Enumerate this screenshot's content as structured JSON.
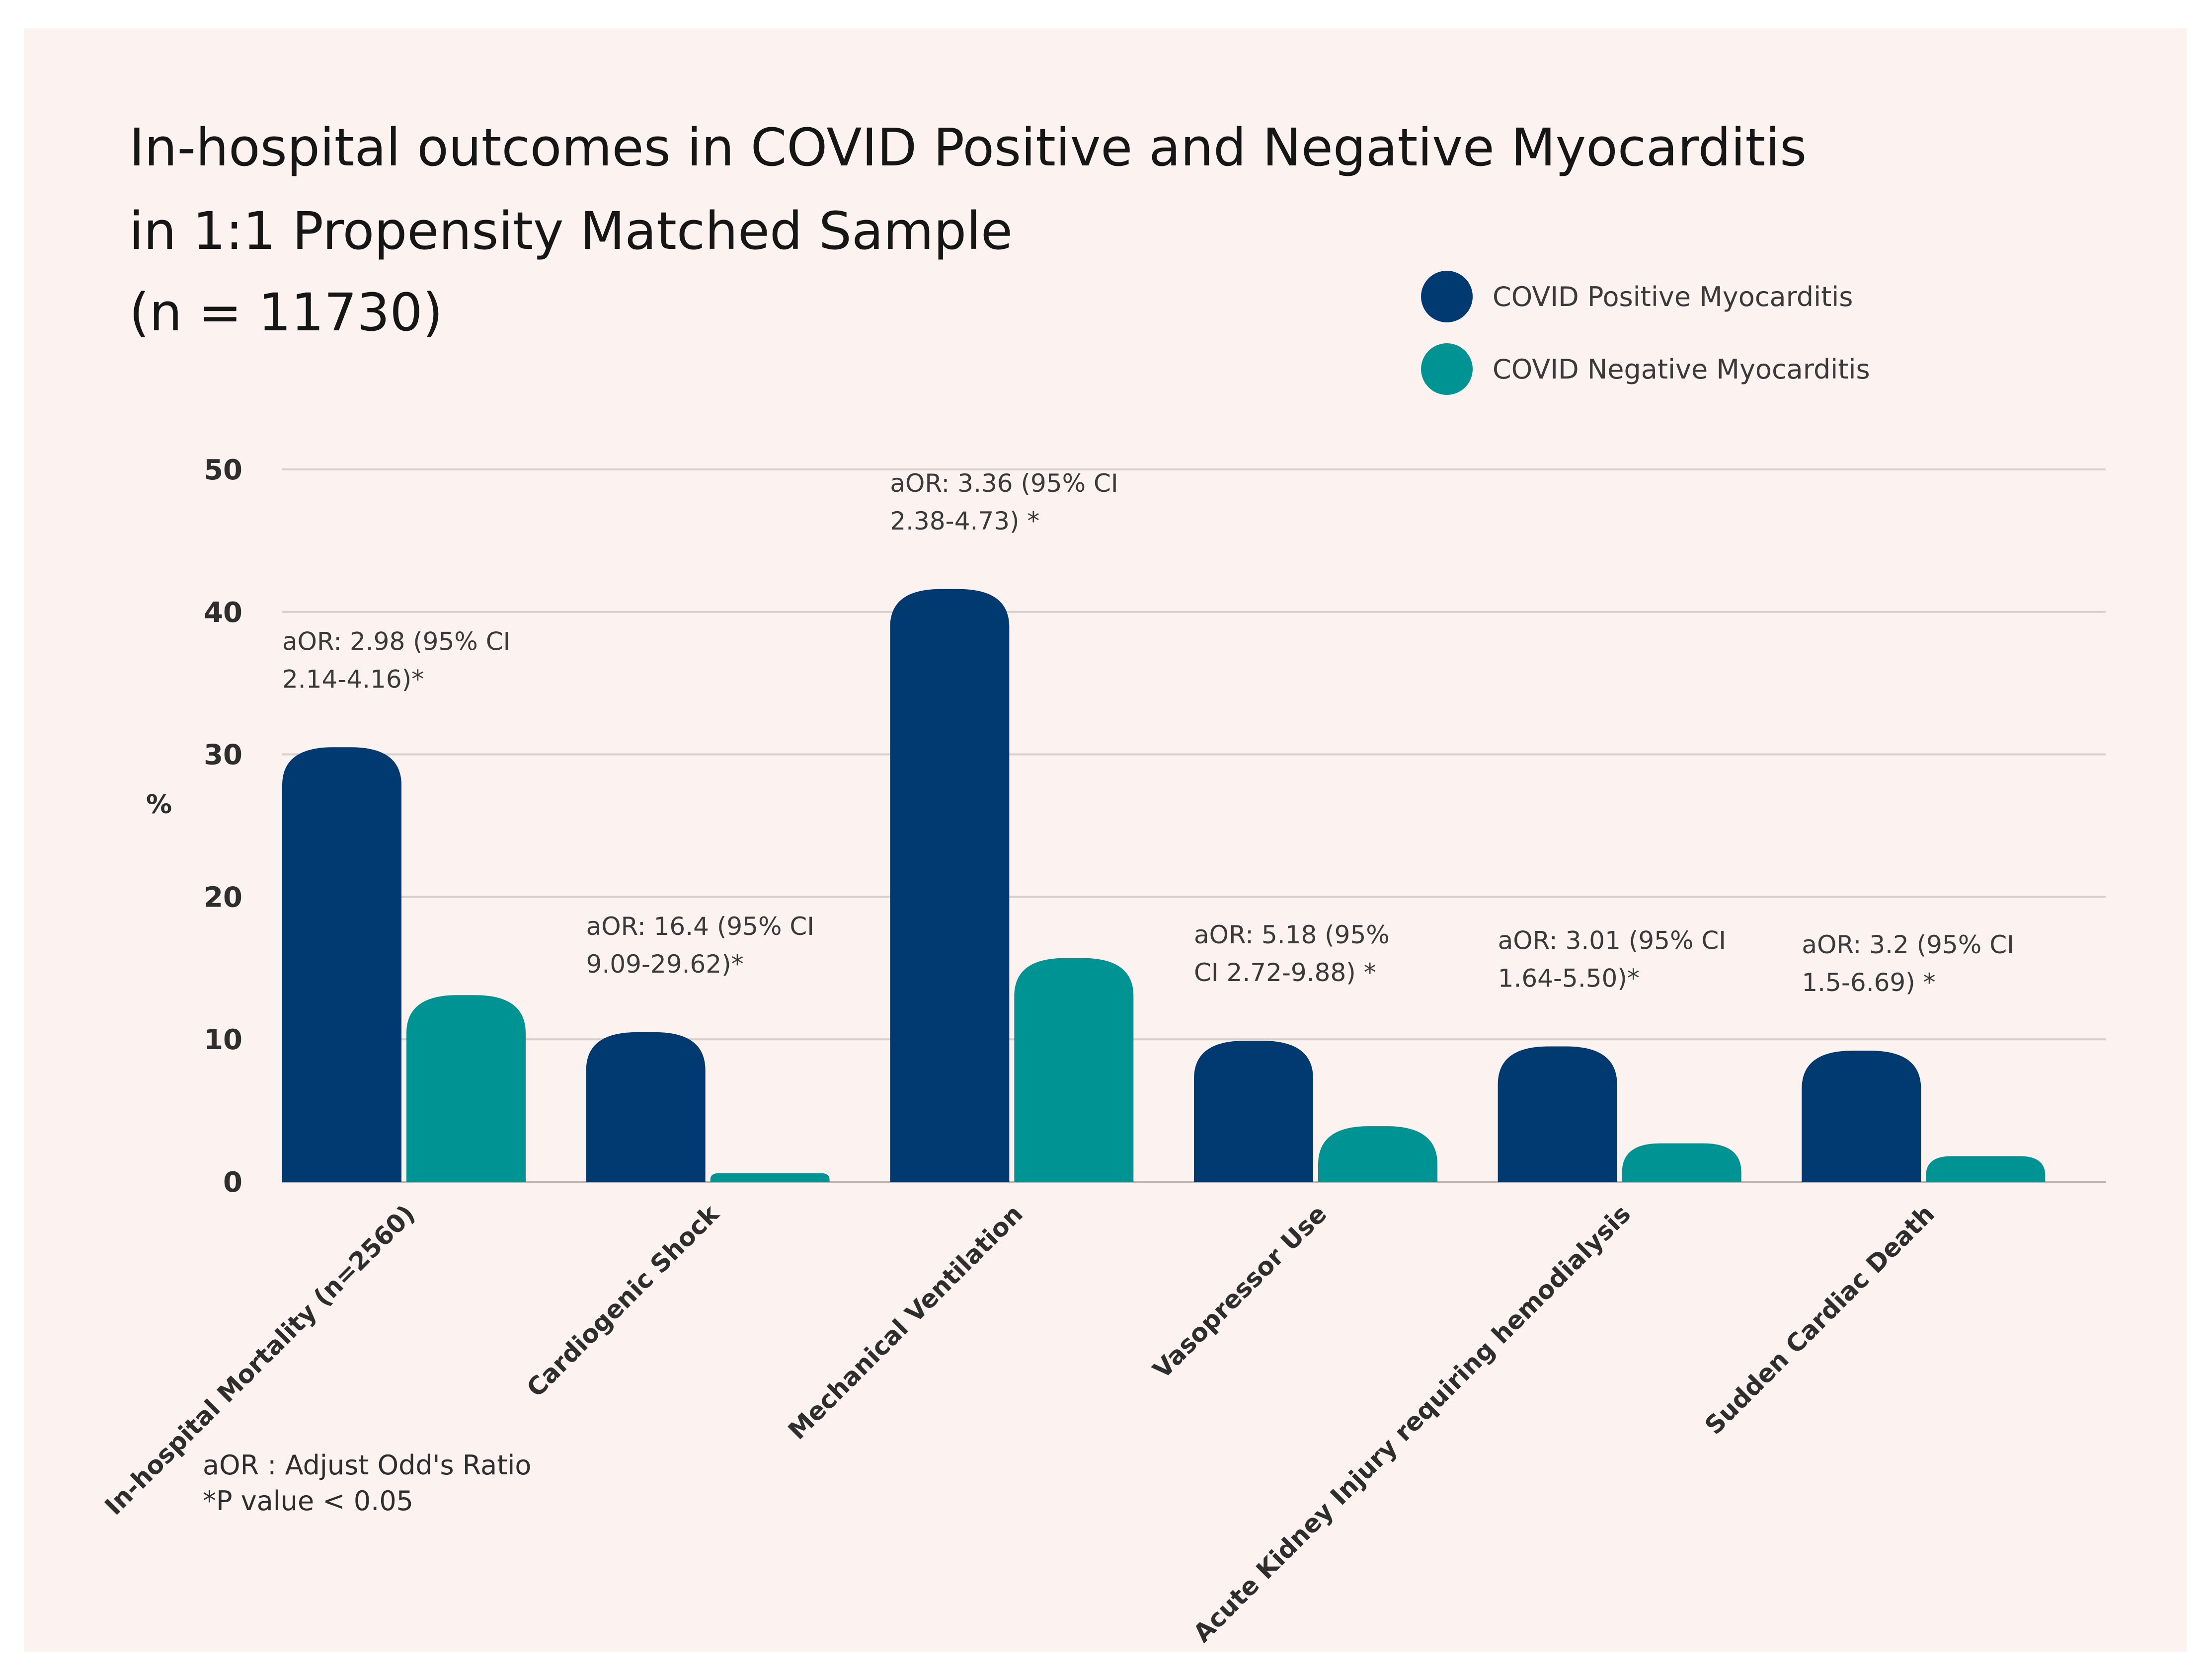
{
  "chart_data": {
    "type": "bar",
    "title": [
      "In-hospital outcomes in COVID Positive and Negative Myocarditis",
      "in 1:1 Propensity Matched Sample",
      "(n = 11730)"
    ],
    "ylabel": "%",
    "ylim": [
      0,
      50
    ],
    "yticks": [
      "0",
      "10",
      "20",
      "30",
      "40",
      "50"
    ],
    "grid": true,
    "legend_position": "top-right",
    "categories": [
      "In-hospital Mortality (n=2560)",
      "Cardiogenic Shock",
      "Mechanical Ventilation",
      "Vasopressor Use",
      "Acute Kidney Injury requiring hemodialysis",
      "Sudden Cardiac Death"
    ],
    "series": [
      {
        "name": "COVID Positive Myocarditis",
        "color": "#003a70",
        "values": [
          30.5,
          10.5,
          41.6,
          9.9,
          9.5,
          9.2
        ]
      },
      {
        "name": "COVID Negative Myocarditis",
        "color": "#009394",
        "values": [
          13.1,
          0.6,
          15.7,
          3.9,
          2.7,
          1.8
        ]
      }
    ],
    "annotations": [
      [
        "aOR: 2.98 (95% CI",
        "2.14-4.16)*"
      ],
      [
        "aOR: 16.4 (95% CI",
        "9.09-29.62)*"
      ],
      [
        "aOR: 3.36 (95% CI",
        "2.38-4.73) *"
      ],
      [
        "aOR: 5.18 (95%",
        "CI 2.72-9.88) *"
      ],
      [
        "aOR: 3.01 (95% CI",
        "1.64-5.50)*"
      ],
      [
        "aOR: 3.2 (95% CI",
        "1.5-6.69) *"
      ]
    ],
    "footnotes": [
      "aOR : Adjust Odd's Ratio",
      "*P value < 0.05"
    ]
  },
  "colors": {
    "background": "#fcf3f1",
    "grid": "#d8d0ce",
    "text": "#2e2e2e"
  }
}
